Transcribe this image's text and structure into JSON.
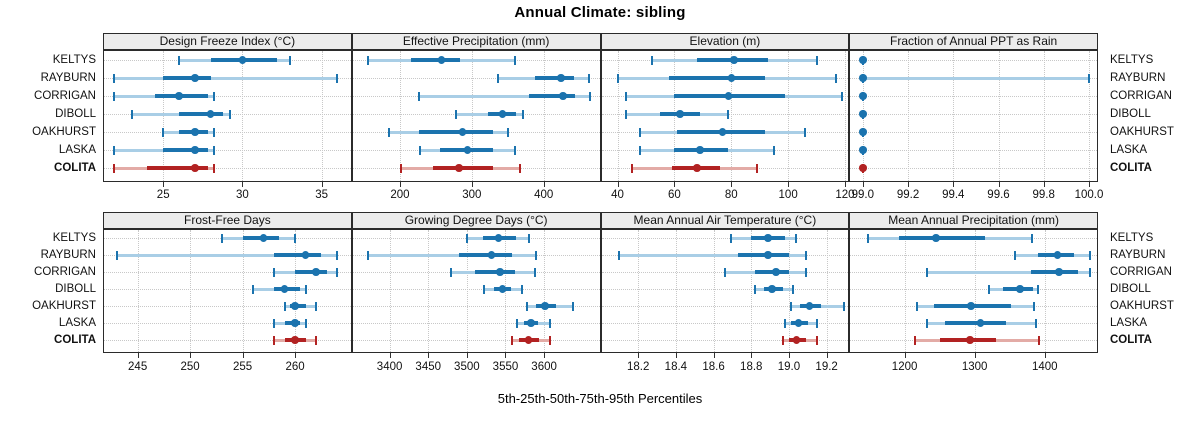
{
  "chart_data": {
    "type": "dotplot",
    "title": "Annual Climate: sibling",
    "caption": "5th-25th-50th-75th-95th Percentiles",
    "percentiles": [
      "5th",
      "25th",
      "50th",
      "75th",
      "95th"
    ],
    "stations": [
      "KELTYS",
      "RAYBURN",
      "CORRIGAN",
      "DIBOLL",
      "OAKHURST",
      "LASKA",
      "COLITA"
    ],
    "highlight_station": "COLITA",
    "legend_position": "none",
    "grid": true,
    "colors": {
      "series": "#1b73ae",
      "series_light": "#a9cee6",
      "highlight": "#b22222",
      "highlight_light": "#e3aba6",
      "strip_bg": "#ececec",
      "panel_border": "#2b2b2b",
      "grid": "#c8c8c8",
      "text": "#000000"
    },
    "rows": [
      [
        {
          "title": "Design Freeze Index (°C)",
          "xlim": [
            21.2,
            36.9
          ],
          "ticks": [
            25,
            30,
            35
          ],
          "tick_labels": [
            "25",
            "30",
            "35"
          ],
          "values": {
            "KELTYS": [
              26.0,
              28.0,
              30.0,
              32.2,
              33.0
            ],
            "RAYBURN": [
              21.9,
              25.0,
              27.0,
              28.0,
              36.0
            ],
            "CORRIGAN": [
              21.9,
              24.5,
              26.0,
              27.8,
              28.2
            ],
            "DIBOLL": [
              23.0,
              26.0,
              28.0,
              28.8,
              29.2
            ],
            "OAKHURST": [
              25.0,
              26.0,
              27.0,
              27.8,
              28.2
            ],
            "LASKA": [
              21.9,
              25.0,
              27.0,
              27.8,
              28.2
            ],
            "COLITA": [
              21.9,
              24.0,
              27.0,
              27.8,
              28.2
            ]
          }
        },
        {
          "title": "Effective Precipitation (mm)",
          "xlim": [
            133,
            479
          ],
          "ticks": [
            200,
            300,
            400
          ],
          "tick_labels": [
            "200",
            "300",
            "400"
          ],
          "values": {
            "KELTYS": [
              155,
              215,
              258,
              284,
              360
            ],
            "RAYBURN": [
              337,
              388,
              424,
              442,
              463
            ],
            "CORRIGAN": [
              226,
              380,
              427,
              444,
              465
            ],
            "DIBOLL": [
              278,
              322,
              343,
              362,
              371
            ],
            "OAKHURST": [
              185,
              226,
              287,
              330,
              351
            ],
            "LASKA": [
              228,
              256,
              294,
              330,
              360
            ],
            "COLITA": [
              202,
              246,
              282,
              330,
              367
            ]
          }
        },
        {
          "title": "Elevation (m)",
          "xlim": [
            34,
            121.5
          ],
          "ticks": [
            40,
            60,
            80,
            100,
            120
          ],
          "tick_labels": [
            "40",
            "60",
            "80",
            "100",
            "120"
          ],
          "values": {
            "KELTYS": [
              52,
              68,
              81,
              93,
              110
            ],
            "RAYBURN": [
              40,
              58,
              80,
              92,
              117
            ],
            "CORRIGAN": [
              43,
              60,
              79,
              99,
              119
            ],
            "DIBOLL": [
              43,
              55,
              62,
              69,
              79
            ],
            "OAKHURST": [
              48,
              61,
              77,
              92,
              106
            ],
            "LASKA": [
              48,
              60,
              69,
              79,
              95
            ],
            "COLITA": [
              45,
              59,
              68,
              76,
              89
            ]
          }
        },
        {
          "title": "Fraction of Annual PPT as Rain",
          "xlim": [
            98.94,
            100.04
          ],
          "ticks": [
            99.0,
            99.2,
            99.4,
            99.6,
            99.8,
            100.0
          ],
          "tick_labels": [
            "99.0",
            "99.2",
            "99.4",
            "99.6",
            "99.8",
            "100.0"
          ],
          "values": {
            "KELTYS": [
              99.0,
              99.0,
              99.0,
              99.0,
              99.0
            ],
            "RAYBURN": [
              99.0,
              99.0,
              99.0,
              99.0,
              100.0
            ],
            "CORRIGAN": [
              99.0,
              99.0,
              99.0,
              99.0,
              99.0
            ],
            "DIBOLL": [
              99.0,
              99.0,
              99.0,
              99.0,
              99.0
            ],
            "OAKHURST": [
              99.0,
              99.0,
              99.0,
              99.0,
              99.0
            ],
            "LASKA": [
              99.0,
              99.0,
              99.0,
              99.0,
              99.0
            ],
            "COLITA": [
              99.0,
              99.0,
              99.0,
              99.0,
              99.0
            ]
          }
        }
      ],
      [
        {
          "title": "Frost-Free Days",
          "xlim": [
            241.7,
            265.4
          ],
          "ticks": [
            245,
            250,
            255,
            260
          ],
          "tick_labels": [
            "245",
            "250",
            "255",
            "260"
          ],
          "values": {
            "KELTYS": [
              253.0,
              255.0,
              257.0,
              258.5,
              260.0
            ],
            "RAYBURN": [
              243.0,
              258.0,
              261.0,
              262.5,
              264.0
            ],
            "CORRIGAN": [
              258.0,
              260.0,
              262.0,
              263.0,
              264.0
            ],
            "DIBOLL": [
              256.0,
              258.0,
              259.0,
              260.5,
              261.0
            ],
            "OAKHURST": [
              259.0,
              259.5,
              260.0,
              261.0,
              262.0
            ],
            "LASKA": [
              258.0,
              259.0,
              260.0,
              260.5,
              261.0
            ],
            "COLITA": [
              258.0,
              259.0,
              260.0,
              261.0,
              262.0
            ]
          }
        },
        {
          "title": "Growing Degree Days (°C)",
          "xlim": [
            3351,
            3673
          ],
          "ticks": [
            3400,
            3450,
            3500,
            3550,
            3600
          ],
          "tick_labels": [
            "3400",
            "3450",
            "3500",
            "3550",
            "3600"
          ],
          "values": {
            "KELTYS": [
              3500,
              3521,
              3541,
              3564,
              3580
            ],
            "RAYBURN": [
              3372,
              3490,
              3532,
              3558,
              3590
            ],
            "CORRIGAN": [
              3480,
              3510,
              3543,
              3562,
              3588
            ],
            "DIBOLL": [
              3522,
              3535,
              3546,
              3557,
              3571
            ],
            "OAKHURST": [
              3578,
              3589,
              3601,
              3616,
              3638
            ],
            "LASKA": [
              3565,
              3574,
              3583,
              3592,
              3608
            ],
            "COLITA": [
              3559,
              3568,
              3580,
              3594,
              3608
            ]
          }
        },
        {
          "title": "Mean Annual Air Temperature (°C)",
          "xlim": [
            18.0,
            19.32
          ],
          "ticks": [
            18.2,
            18.4,
            18.6,
            18.8,
            19.0,
            19.2
          ],
          "tick_labels": [
            "18.2",
            "18.4",
            "18.6",
            "18.8",
            "19.0",
            "19.2"
          ],
          "values": {
            "KELTYS": [
              18.69,
              18.8,
              18.89,
              18.98,
              19.04
            ],
            "RAYBURN": [
              18.1,
              18.73,
              18.89,
              19.0,
              19.09
            ],
            "CORRIGAN": [
              18.66,
              18.82,
              18.93,
              19.0,
              19.09
            ],
            "DIBOLL": [
              18.82,
              18.87,
              18.91,
              18.97,
              19.02
            ],
            "OAKHURST": [
              19.01,
              19.06,
              19.11,
              19.17,
              19.29
            ],
            "LASKA": [
              18.98,
              19.01,
              19.05,
              19.1,
              19.15
            ],
            "COLITA": [
              18.97,
              19.0,
              19.04,
              19.09,
              19.15
            ]
          }
        },
        {
          "title": "Mean Annual Precipitation (mm)",
          "xlim": [
            1121,
            1476
          ],
          "ticks": [
            1200,
            1300,
            1400
          ],
          "tick_labels": [
            "1200",
            "1300",
            "1400"
          ],
          "values": {
            "KELTYS": [
              1148,
              1192,
              1245,
              1315,
              1382
            ],
            "RAYBURN": [
              1358,
              1390,
              1418,
              1442,
              1465
            ],
            "CORRIGAN": [
              1232,
              1380,
              1420,
              1448,
              1465
            ],
            "DIBOLL": [
              1320,
              1340,
              1365,
              1383,
              1390
            ],
            "OAKHURST": [
              1218,
              1242,
              1295,
              1352,
              1385
            ],
            "LASKA": [
              1232,
              1258,
              1308,
              1345,
              1387
            ],
            "COLITA": [
              1215,
              1250,
              1293,
              1330,
              1392
            ]
          }
        }
      ]
    ]
  }
}
